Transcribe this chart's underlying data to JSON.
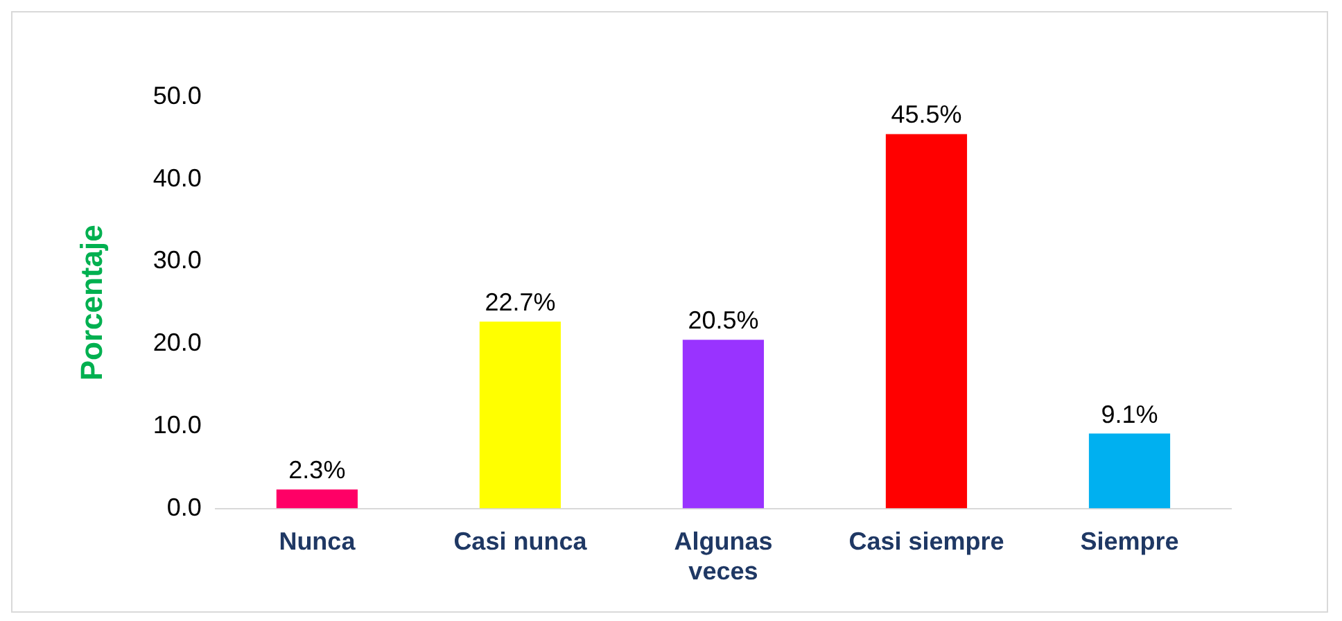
{
  "chart_data": {
    "type": "bar",
    "ylabel": "Porcentaje",
    "categories": [
      "Nunca",
      "Casi nunca",
      "Algunas veces",
      "Casi siempre",
      "Siempre"
    ],
    "values": [
      2.3,
      22.7,
      20.5,
      45.5,
      9.1
    ],
    "colors": [
      "#ff0066",
      "#ffff00",
      "#9933ff",
      "#ff0000",
      "#00b0f0"
    ],
    "value_labels": [
      "2.3%",
      "22.7%",
      "20.5%",
      "45.5%",
      "9.1%"
    ],
    "ylim": [
      0,
      50
    ],
    "yticks": [
      {
        "value": 0,
        "label": "0.0"
      },
      {
        "value": 10,
        "label": "10.0"
      },
      {
        "value": 20,
        "label": "20.0"
      },
      {
        "value": 30,
        "label": "30.0"
      },
      {
        "value": 40,
        "label": "40.0"
      },
      {
        "value": 50,
        "label": "50.0"
      }
    ],
    "grid": false,
    "legend": false
  }
}
